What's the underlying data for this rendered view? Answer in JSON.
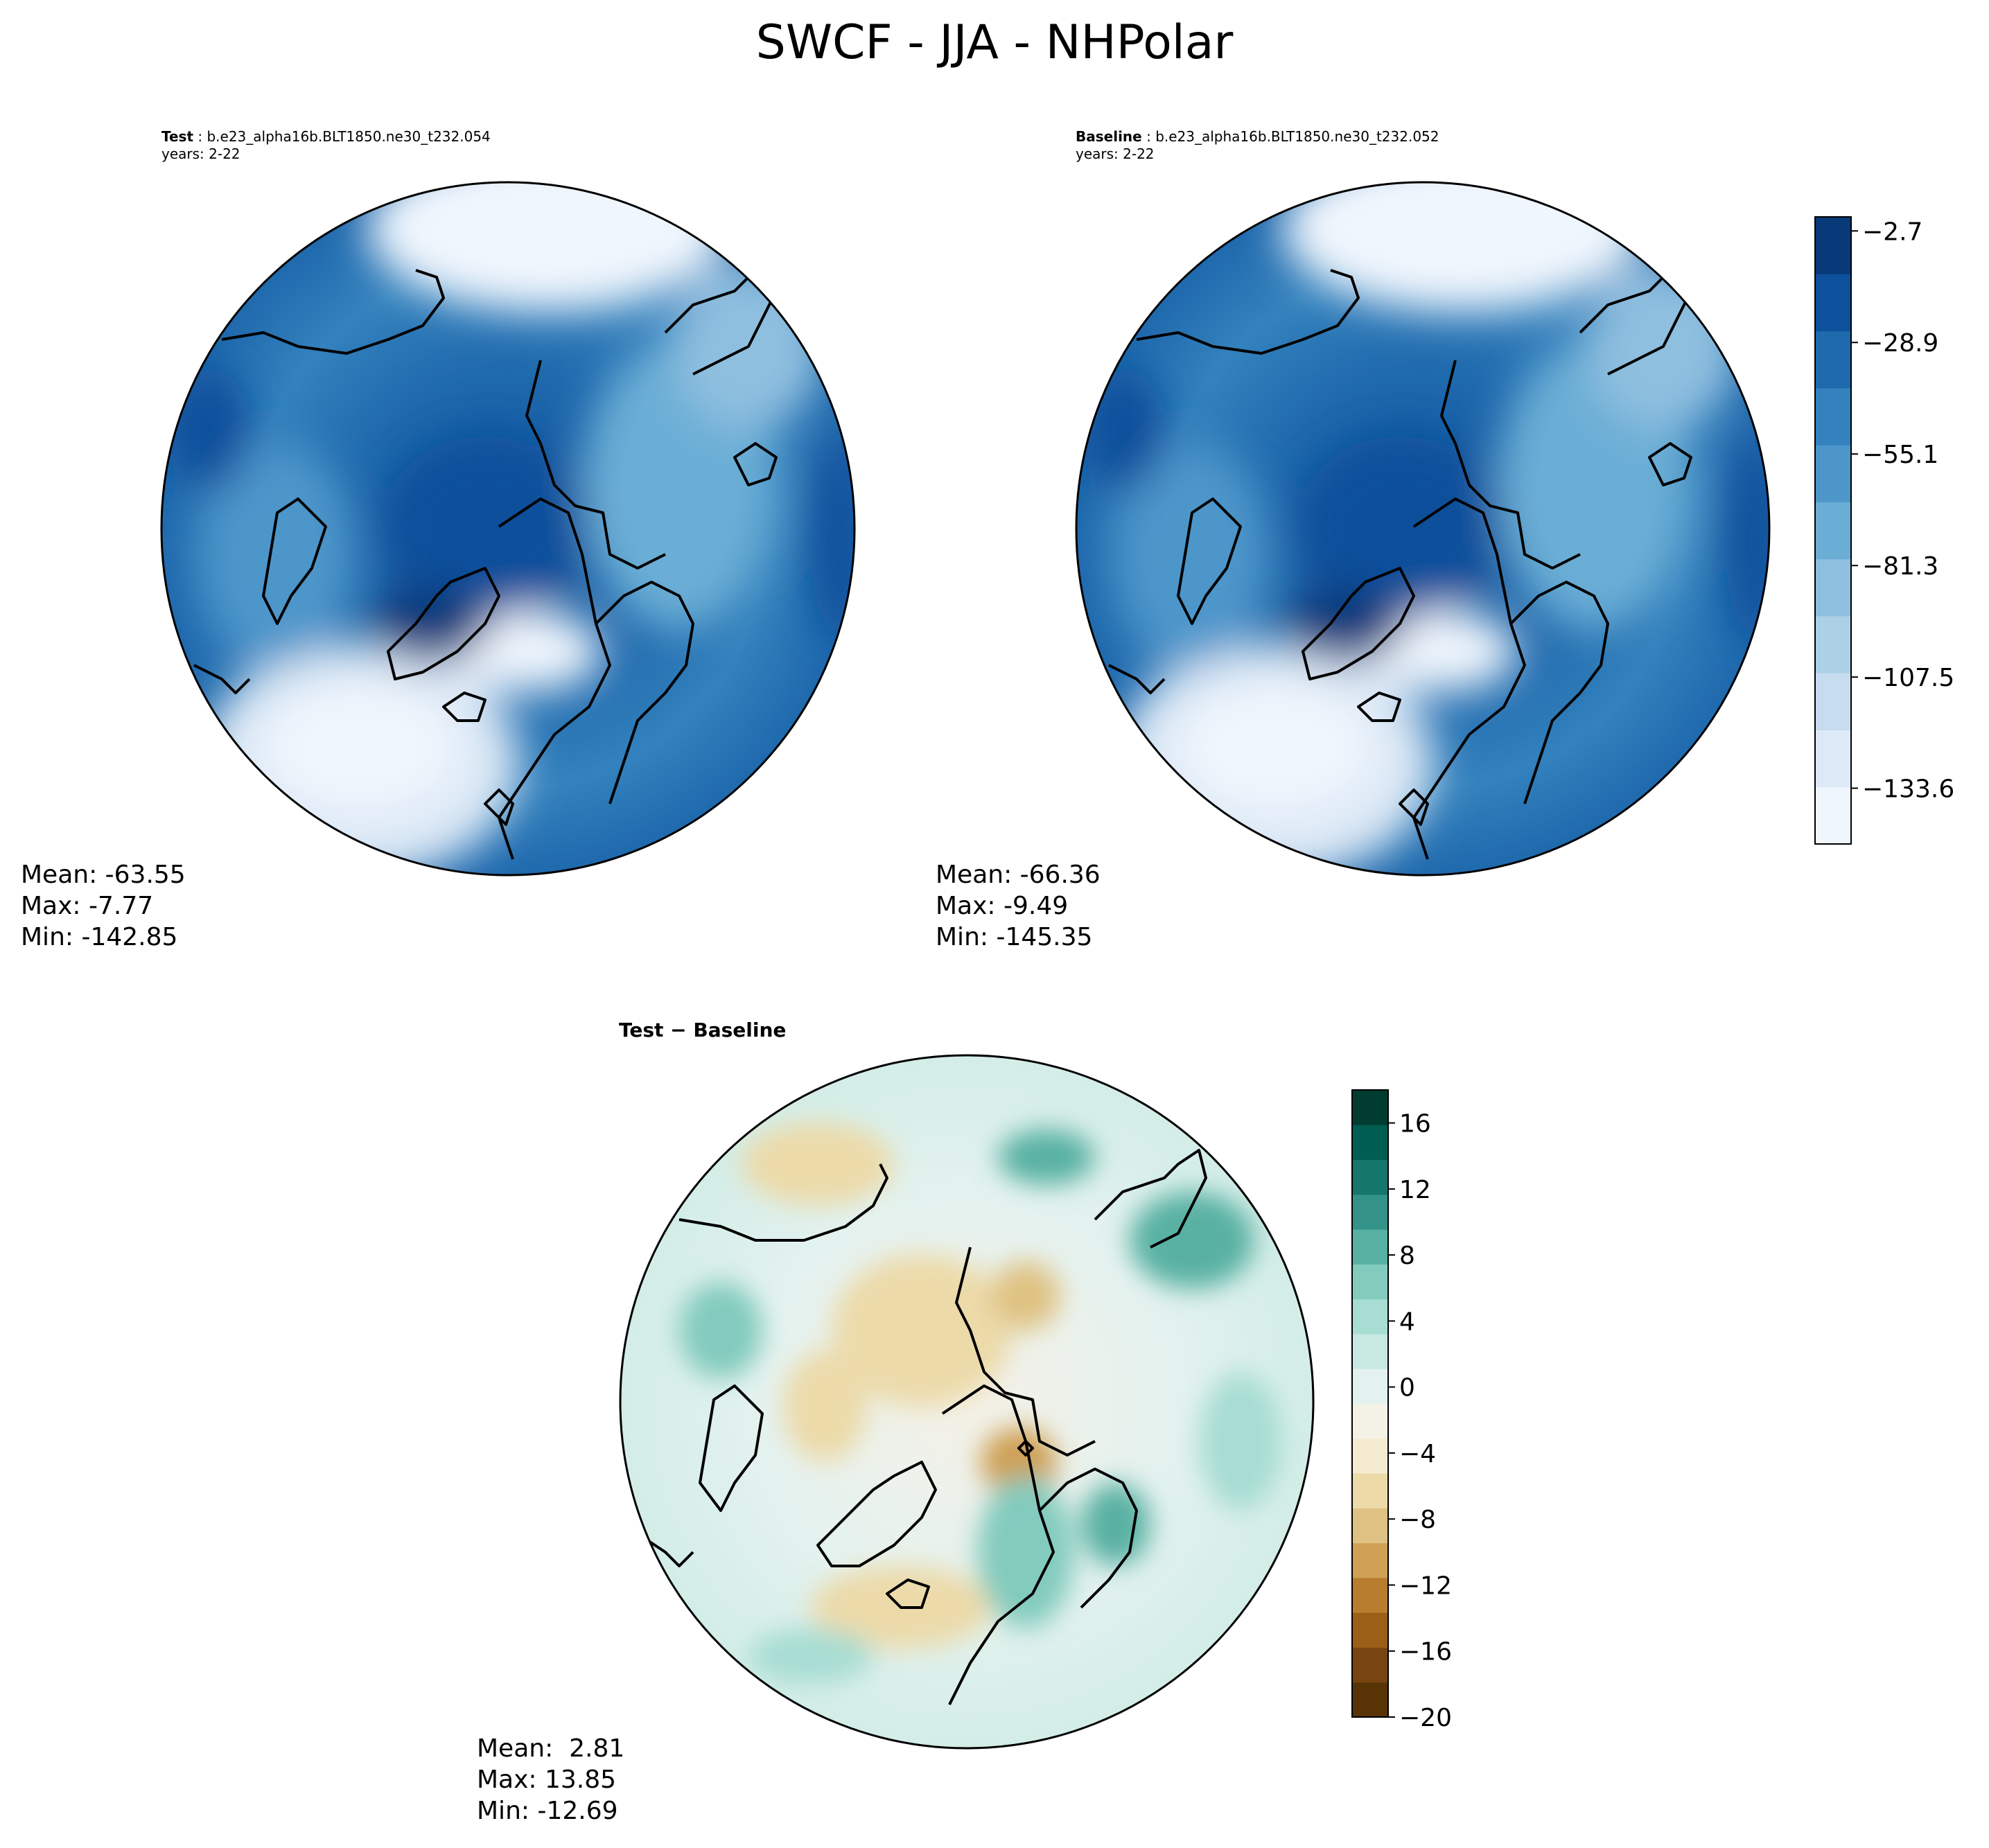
{
  "title": "SWCF - JJA - NHPolar",
  "panels": [
    {
      "label": "Test",
      "case": "b.e23_alpha16b.BLT1850.ne30_t232.054",
      "years": "years: 2-22",
      "stats": {
        "mean": "Mean: -63.55",
        "max": "Max: -7.77",
        "min": "Min: -142.85"
      }
    },
    {
      "label": "Baseline",
      "case": "b.e23_alpha16b.BLT1850.ne30_t232.052",
      "years": "years: 2-22",
      "stats": {
        "mean": "Mean: -66.36",
        "max": "Max: -9.49",
        "min": "Min: -145.35"
      }
    },
    {
      "label": "Test − Baseline",
      "stats": {
        "mean": "Mean:  2.81",
        "max": "Max: 13.85",
        "min": "Min: -12.69"
      }
    }
  ],
  "colorbar_top": {
    "ticks": [
      "−2.7",
      "−28.9",
      "−55.1",
      "−81.3",
      "−107.5",
      "−133.6"
    ],
    "tick_values": [
      -2.7,
      -28.9,
      -55.1,
      -81.3,
      -107.5,
      -133.6
    ],
    "range": [
      -146.7,
      0.6
    ],
    "colors": [
      "#f0f6fd",
      "#dde9f6",
      "#c8dcef",
      "#acd0e6",
      "#8fbfdf",
      "#6aaed6",
      "#4d96ca",
      "#3381bd",
      "#1f69ad",
      "#0d509b",
      "#083a7a"
    ]
  },
  "colorbar_diff": {
    "ticks": [
      "16",
      "12",
      "8",
      "4",
      "0",
      "−4",
      "−8",
      "−12",
      "−16",
      "−20"
    ],
    "tick_values": [
      16,
      12,
      8,
      4,
      0,
      -4,
      -8,
      -12,
      -16,
      -20
    ],
    "range": [
      -20,
      18
    ],
    "colors": [
      "#573305",
      "#784511",
      "#9b5f17",
      "#b87d2e",
      "#cfa055",
      "#dfc283",
      "#ecdaa9",
      "#f4ead0",
      "#f4f1e7",
      "#e4f2ef",
      "#c7e9e2",
      "#a7ddd3",
      "#82cbbd",
      "#58b1a3",
      "#339388",
      "#15766c",
      "#005d51",
      "#003d30"
    ]
  },
  "chart_data": {
    "type": "heatmap",
    "title": "SWCF - JJA - NHPolar",
    "projection": "North polar stereographic",
    "maps": [
      {
        "name": "Test",
        "mean": -63.55,
        "max": -7.77,
        "min": -142.85,
        "colorbar_ticks": [
          -2.7,
          -28.9,
          -55.1,
          -81.3,
          -107.5,
          -133.6
        ]
      },
      {
        "name": "Baseline",
        "mean": -66.36,
        "max": -9.49,
        "min": -145.35,
        "colorbar_ticks": [
          -2.7,
          -28.9,
          -55.1,
          -81.3,
          -107.5,
          -133.6
        ]
      },
      {
        "name": "Test − Baseline",
        "mean": 2.81,
        "max": 13.85,
        "min": -12.69,
        "colorbar_ticks": [
          -20,
          -16,
          -12,
          -8,
          -4,
          0,
          4,
          8,
          12,
          16
        ]
      }
    ]
  }
}
